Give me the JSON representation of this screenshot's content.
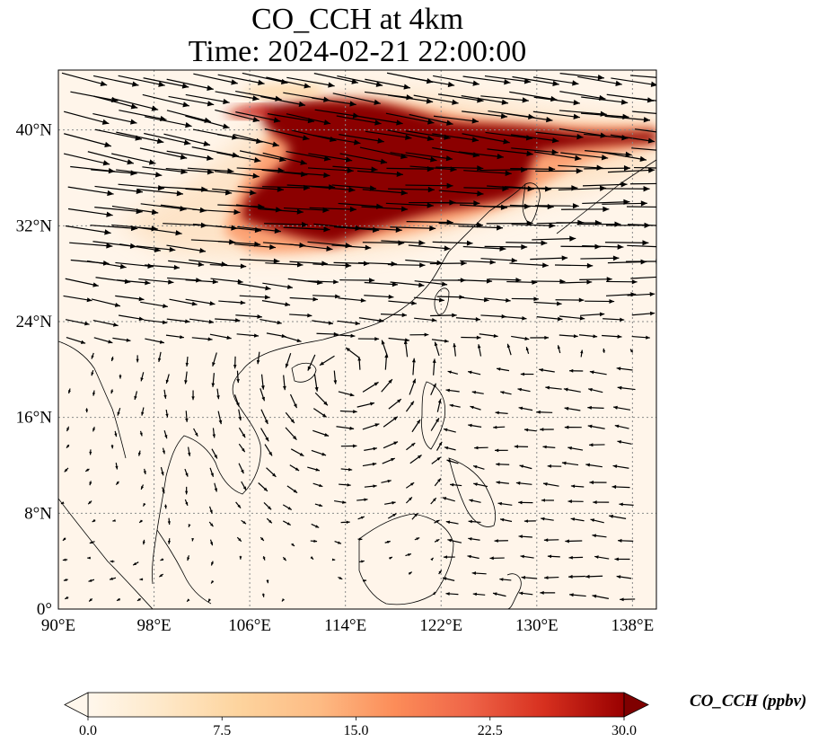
{
  "title": {
    "line1": "CO_CCH at 4km",
    "line2": "Time: 2024-02-21 22:00:00"
  },
  "map": {
    "variable": "CO_CCH",
    "level": "4km",
    "extent": {
      "lon_min": 90,
      "lon_max": 140,
      "lat_min": 0,
      "lat_max": 45
    },
    "lon_ticks": [
      {
        "value": 90,
        "label": "90°E"
      },
      {
        "value": 98,
        "label": "98°E"
      },
      {
        "value": 106,
        "label": "106°E"
      },
      {
        "value": 114,
        "label": "114°E"
      },
      {
        "value": 122,
        "label": "122°E"
      },
      {
        "value": 130,
        "label": "130°E"
      },
      {
        "value": 138,
        "label": "138°E"
      }
    ],
    "lat_ticks": [
      {
        "value": 0,
        "label": "0°"
      },
      {
        "value": 8,
        "label": "8°N"
      },
      {
        "value": 16,
        "label": "16°N"
      },
      {
        "value": 24,
        "label": "24°N"
      },
      {
        "value": 32,
        "label": "32°N"
      },
      {
        "value": 40,
        "label": "40°N"
      }
    ],
    "gridlines": true,
    "gridline_style": "dotted",
    "field_features": "high CO plume 30-43°N from ~103°E to 140°E; westerly jet across the north, anticyclonic circulation over the South China Sea",
    "wind_vectors": true
  },
  "colorbar": {
    "label": "CO_CCH (ppbv)",
    "colormap": "OrRd",
    "vmin": 0.0,
    "vmax": 30.0,
    "extend": "both",
    "ticks": [
      {
        "value": 0.0,
        "label": "0.0"
      },
      {
        "value": 7.5,
        "label": "7.5"
      },
      {
        "value": 15.0,
        "label": "15.0"
      },
      {
        "value": 22.5,
        "label": "22.5"
      },
      {
        "value": 30.0,
        "label": "30.0"
      }
    ]
  },
  "colors": {
    "background_low": "#fff7ec",
    "mid": "#fdbb84",
    "high": "#d7301f",
    "max": "#7f0000",
    "coastline": "#000000",
    "grid": "#8a8a8a"
  }
}
